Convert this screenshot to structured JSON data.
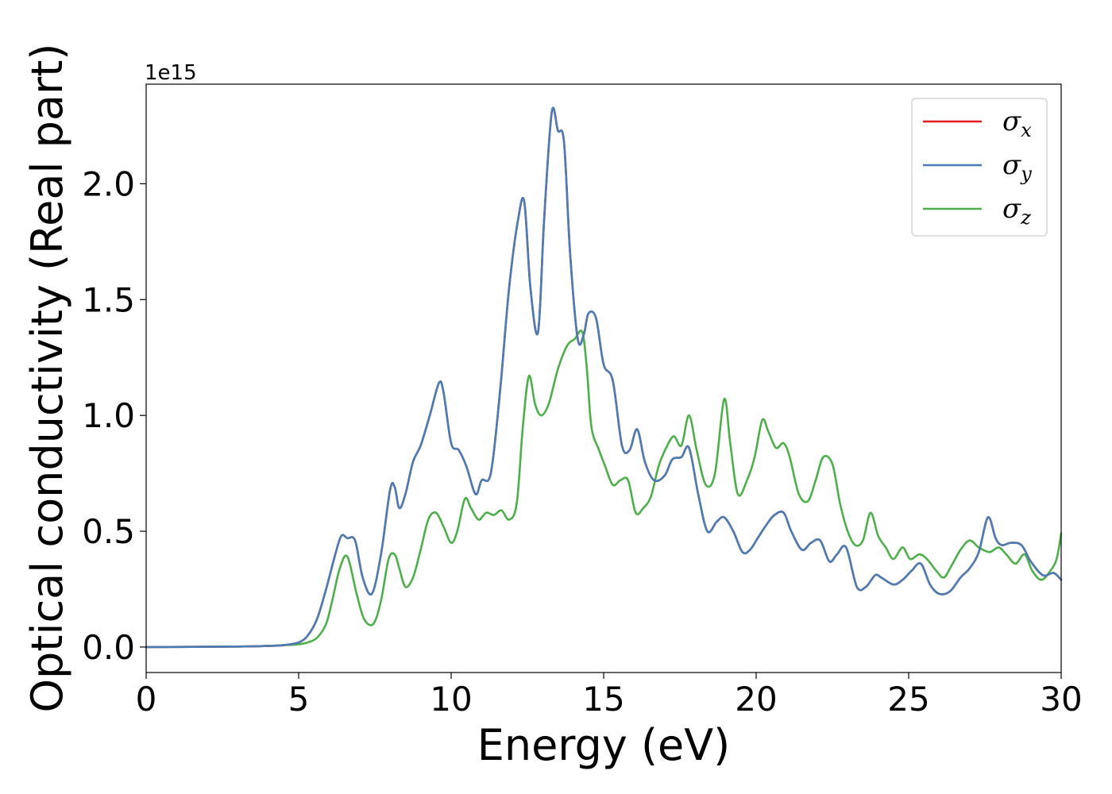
{
  "chart_data": {
    "type": "line",
    "xlabel": "Energy (eV)",
    "ylabel": "Optical conductivity (Real part)",
    "y_offset_text": "1e15",
    "xlim": [
      0,
      30
    ],
    "ylim": [
      -0.11,
      2.43
    ],
    "x_ticks": [
      0,
      5,
      10,
      15,
      20,
      25,
      30
    ],
    "x_tick_labels": [
      "0",
      "5",
      "10",
      "15",
      "20",
      "25",
      "30"
    ],
    "y_ticks": [
      0.0,
      0.5,
      1.0,
      1.5,
      2.0
    ],
    "y_tick_labels": [
      "0.0",
      "0.5",
      "1.0",
      "1.5",
      "2.0"
    ],
    "grid": false,
    "legend_position": "top-right",
    "series": [
      {
        "name": "σx",
        "symbol": "σ",
        "subscript": "x",
        "color": "#e41a1c",
        "x": [
          0,
          3,
          4,
          4.5,
          5,
          5.3,
          5.6,
          5.9,
          6.2,
          6.4,
          6.6,
          6.85,
          7.1,
          7.4,
          7.7,
          8,
          8.15,
          8.3,
          8.5,
          8.75,
          9,
          9.3,
          9.6,
          9.75,
          10,
          10.25,
          10.5,
          10.8,
          11,
          11.3,
          11.6,
          11.9,
          12.2,
          12.4,
          12.6,
          12.85,
          13.05,
          13.3,
          13.5,
          13.7,
          13.9,
          14.15,
          14.35,
          14.5,
          14.75,
          15,
          15.3,
          15.6,
          15.85,
          16.1,
          16.35,
          16.65,
          17,
          17.25,
          17.55,
          17.8,
          18.1,
          18.4,
          18.7,
          18.95,
          19.25,
          19.55,
          19.8,
          20.05,
          20.35,
          20.6,
          20.9,
          21.15,
          21.5,
          21.8,
          22.1,
          22.4,
          22.65,
          22.95,
          23.3,
          23.6,
          23.9,
          24.1,
          24.5,
          24.8,
          25.1,
          25.4,
          25.7,
          26,
          26.35,
          26.7,
          27,
          27.3,
          27.6,
          27.85,
          28.05,
          28.35,
          28.7,
          29,
          29.4,
          29.75,
          30
        ],
        "y": [
          0,
          0.002,
          0.005,
          0.008,
          0.02,
          0.05,
          0.12,
          0.25,
          0.4,
          0.48,
          0.47,
          0.46,
          0.3,
          0.23,
          0.4,
          0.68,
          0.69,
          0.6,
          0.66,
          0.8,
          0.87,
          1.0,
          1.14,
          1.1,
          0.88,
          0.85,
          0.78,
          0.66,
          0.72,
          0.75,
          1.1,
          1.55,
          1.85,
          1.92,
          1.55,
          1.36,
          1.85,
          2.31,
          2.23,
          2.18,
          1.7,
          1.33,
          1.35,
          1.44,
          1.42,
          1.22,
          1.15,
          0.87,
          0.85,
          0.94,
          0.8,
          0.72,
          0.74,
          0.81,
          0.82,
          0.86,
          0.66,
          0.5,
          0.54,
          0.56,
          0.5,
          0.41,
          0.42,
          0.47,
          0.53,
          0.57,
          0.58,
          0.5,
          0.42,
          0.45,
          0.46,
          0.37,
          0.4,
          0.43,
          0.26,
          0.26,
          0.31,
          0.3,
          0.27,
          0.29,
          0.33,
          0.36,
          0.27,
          0.23,
          0.24,
          0.3,
          0.34,
          0.41,
          0.56,
          0.47,
          0.44,
          0.45,
          0.44,
          0.37,
          0.31,
          0.32,
          0.29
        ]
      },
      {
        "name": "σy",
        "symbol": "σ",
        "subscript": "y",
        "color": "#4a7db5",
        "x": [
          0,
          3,
          4,
          4.5,
          5,
          5.3,
          5.6,
          5.9,
          6.2,
          6.4,
          6.6,
          6.85,
          7.1,
          7.4,
          7.7,
          8,
          8.15,
          8.3,
          8.5,
          8.75,
          9,
          9.3,
          9.6,
          9.75,
          10,
          10.25,
          10.5,
          10.8,
          11,
          11.3,
          11.6,
          11.9,
          12.2,
          12.4,
          12.6,
          12.85,
          13.05,
          13.3,
          13.5,
          13.7,
          13.9,
          14.15,
          14.35,
          14.5,
          14.75,
          15,
          15.3,
          15.6,
          15.85,
          16.1,
          16.35,
          16.65,
          17,
          17.25,
          17.55,
          17.8,
          18.1,
          18.4,
          18.7,
          18.95,
          19.25,
          19.55,
          19.8,
          20.05,
          20.35,
          20.6,
          20.9,
          21.15,
          21.5,
          21.8,
          22.1,
          22.4,
          22.65,
          22.95,
          23.3,
          23.6,
          23.9,
          24.1,
          24.5,
          24.8,
          25.1,
          25.4,
          25.7,
          26,
          26.35,
          26.7,
          27,
          27.3,
          27.6,
          27.85,
          28.05,
          28.35,
          28.7,
          29,
          29.4,
          29.75,
          30
        ],
        "y": [
          0,
          0.002,
          0.005,
          0.008,
          0.02,
          0.05,
          0.12,
          0.25,
          0.4,
          0.48,
          0.47,
          0.46,
          0.3,
          0.23,
          0.4,
          0.68,
          0.69,
          0.6,
          0.66,
          0.8,
          0.87,
          1.0,
          1.14,
          1.1,
          0.88,
          0.85,
          0.78,
          0.66,
          0.72,
          0.75,
          1.1,
          1.55,
          1.85,
          1.92,
          1.55,
          1.36,
          1.85,
          2.31,
          2.23,
          2.18,
          1.7,
          1.33,
          1.35,
          1.44,
          1.42,
          1.22,
          1.15,
          0.87,
          0.85,
          0.94,
          0.8,
          0.72,
          0.74,
          0.81,
          0.82,
          0.86,
          0.66,
          0.5,
          0.54,
          0.56,
          0.5,
          0.41,
          0.42,
          0.47,
          0.53,
          0.57,
          0.58,
          0.5,
          0.42,
          0.45,
          0.46,
          0.37,
          0.4,
          0.43,
          0.26,
          0.26,
          0.31,
          0.3,
          0.27,
          0.29,
          0.33,
          0.36,
          0.27,
          0.23,
          0.24,
          0.3,
          0.34,
          0.41,
          0.56,
          0.47,
          0.44,
          0.45,
          0.44,
          0.37,
          0.31,
          0.32,
          0.29
        ]
      },
      {
        "name": "σz",
        "symbol": "σ",
        "subscript": "z",
        "color": "#4daf4a",
        "x": [
          0,
          3,
          4,
          4.5,
          5,
          5.3,
          5.6,
          5.9,
          6.1,
          6.35,
          6.6,
          6.9,
          7.15,
          7.45,
          7.7,
          7.95,
          8.15,
          8.3,
          8.5,
          8.75,
          9,
          9.25,
          9.5,
          9.75,
          10,
          10.2,
          10.45,
          10.65,
          10.9,
          11.15,
          11.4,
          11.65,
          11.9,
          12.15,
          12.35,
          12.55,
          12.75,
          12.95,
          13.2,
          13.5,
          13.8,
          14.05,
          14.3,
          14.45,
          14.6,
          14.85,
          15.05,
          15.3,
          15.55,
          15.8,
          16.05,
          16.3,
          16.55,
          16.8,
          17.05,
          17.3,
          17.55,
          17.8,
          18.05,
          18.35,
          18.65,
          18.95,
          19.15,
          19.4,
          19.7,
          19.95,
          20.2,
          20.4,
          20.65,
          20.9,
          21.1,
          21.4,
          21.7,
          21.95,
          22.2,
          22.5,
          22.75,
          23,
          23.25,
          23.5,
          23.75,
          24,
          24.25,
          24.5,
          24.8,
          25.05,
          25.35,
          25.6,
          25.9,
          26.15,
          26.4,
          26.7,
          27,
          27.3,
          27.65,
          27.95,
          28.2,
          28.5,
          28.8,
          29.05,
          29.35,
          29.65,
          29.85,
          30
        ],
        "y": [
          0,
          0.002,
          0.005,
          0.008,
          0.012,
          0.02,
          0.04,
          0.1,
          0.2,
          0.34,
          0.39,
          0.23,
          0.12,
          0.1,
          0.2,
          0.38,
          0.4,
          0.34,
          0.26,
          0.3,
          0.42,
          0.55,
          0.58,
          0.52,
          0.45,
          0.5,
          0.64,
          0.6,
          0.55,
          0.58,
          0.57,
          0.59,
          0.55,
          0.62,
          0.95,
          1.17,
          1.05,
          1.0,
          1.05,
          1.2,
          1.3,
          1.33,
          1.36,
          1.2,
          0.95,
          0.85,
          0.78,
          0.7,
          0.72,
          0.72,
          0.58,
          0.6,
          0.65,
          0.78,
          0.86,
          0.91,
          0.87,
          1.0,
          0.85,
          0.7,
          0.75,
          1.07,
          0.88,
          0.66,
          0.72,
          0.82,
          0.98,
          0.93,
          0.86,
          0.88,
          0.82,
          0.66,
          0.63,
          0.72,
          0.82,
          0.79,
          0.62,
          0.5,
          0.44,
          0.46,
          0.58,
          0.48,
          0.43,
          0.38,
          0.43,
          0.38,
          0.4,
          0.38,
          0.33,
          0.3,
          0.35,
          0.42,
          0.46,
          0.43,
          0.41,
          0.43,
          0.4,
          0.36,
          0.4,
          0.33,
          0.29,
          0.33,
          0.38,
          0.49
        ]
      }
    ]
  }
}
